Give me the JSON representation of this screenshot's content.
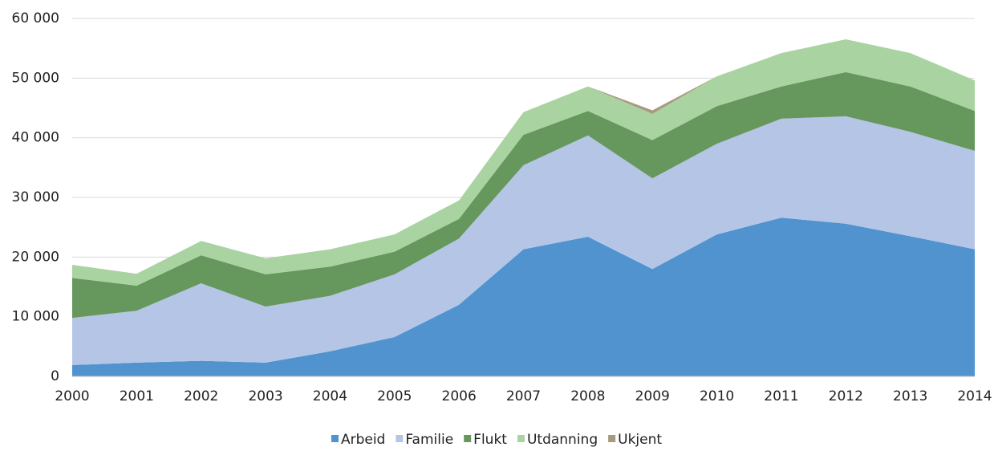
{
  "chart_data": {
    "type": "stacked_area",
    "categories": [
      "2000",
      "2001",
      "2002",
      "2003",
      "2004",
      "2005",
      "2006",
      "2007",
      "2008",
      "2009",
      "2010",
      "2011",
      "2012",
      "2013",
      "2014"
    ],
    "series": [
      {
        "name": "Arbeid",
        "color": "#5093cf",
        "values": [
          1900,
          2300,
          2600,
          2300,
          4200,
          6600,
          12000,
          21300,
          23400,
          18000,
          23800,
          26600,
          25600,
          23500,
          21300
        ]
      },
      {
        "name": "Familie",
        "color": "#b4c5e6",
        "values": [
          7900,
          8700,
          13000,
          9400,
          9300,
          10500,
          11100,
          14100,
          17000,
          15200,
          15200,
          16600,
          18000,
          17500,
          16500
        ]
      },
      {
        "name": "Flukt",
        "color": "#66975d",
        "values": [
          6700,
          4200,
          4700,
          5400,
          4900,
          3800,
          3300,
          5100,
          4100,
          6400,
          6300,
          5400,
          7400,
          7600,
          6700
        ]
      },
      {
        "name": "Utdanning",
        "color": "#a9d3a0",
        "values": [
          2200,
          2000,
          2400,
          2700,
          2900,
          2900,
          3100,
          3800,
          4100,
          4400,
          5000,
          5600,
          5500,
          5600,
          5100
        ]
      },
      {
        "name": "Ukjent",
        "color": "#a89a7f",
        "values": [
          0,
          0,
          0,
          0,
          0,
          0,
          0,
          0,
          0,
          600,
          0,
          0,
          0,
          0,
          0
        ]
      }
    ],
    "ylim": [
      0,
      60000
    ],
    "yticks": [
      0,
      {
        "value": 10000,
        "label": "10 000"
      },
      {
        "value": 20000,
        "label": "20 000"
      },
      {
        "value": 30000,
        "label": "30 000"
      },
      {
        "value": 40000,
        "label": "40 000"
      },
      {
        "value": 50000,
        "label": "50 000"
      },
      {
        "value": 60000,
        "label": "60 000"
      }
    ],
    "grid": true,
    "legend": "bottom"
  }
}
